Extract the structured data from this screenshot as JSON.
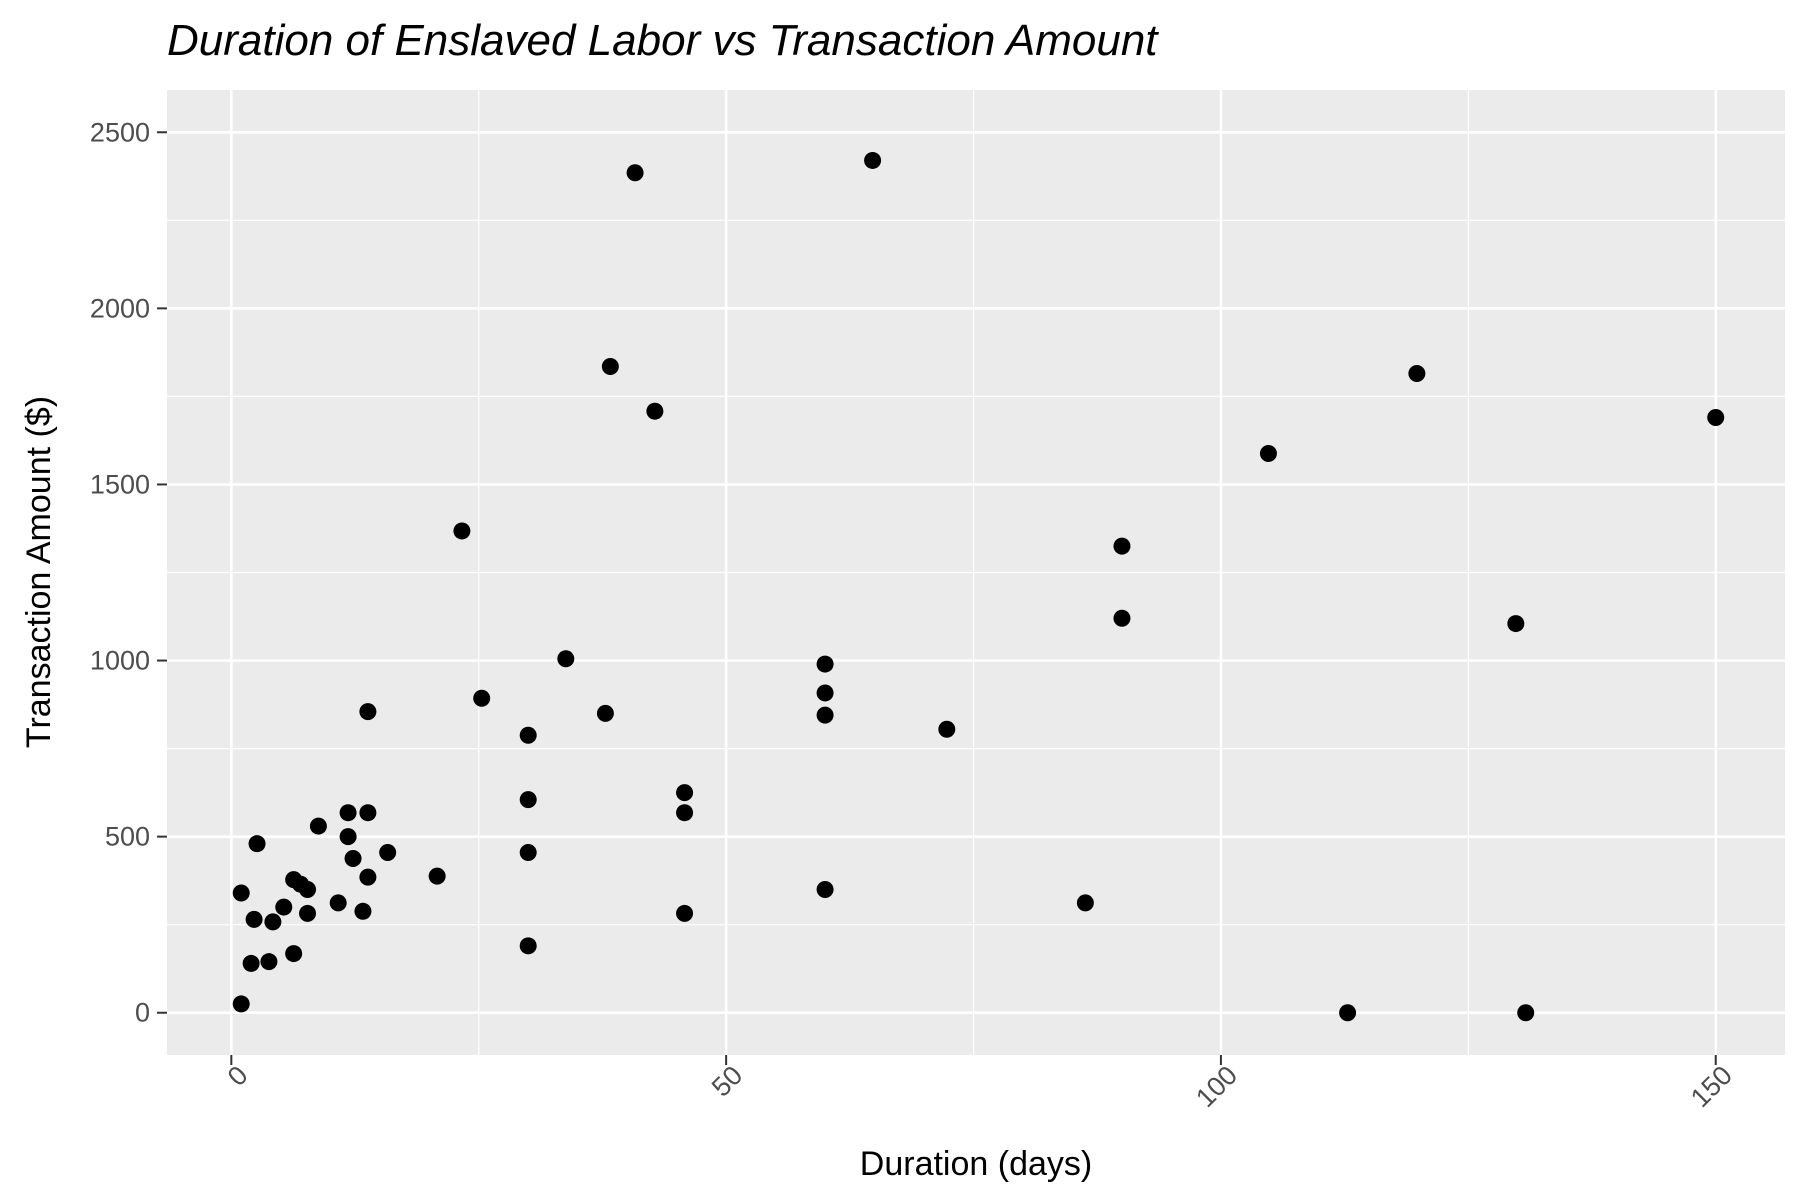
{
  "chart_data": {
    "type": "scatter",
    "title": "Duration of Enslaved Labor vs Transaction Amount",
    "xlabel": "Duration (days)",
    "ylabel": "Transaction Amount ($)",
    "xlim": [
      -6.5,
      157
    ],
    "ylim": [
      -120,
      2620
    ],
    "x_ticks": [
      0,
      50,
      100,
      150
    ],
    "x_tick_labels": [
      "0",
      "50",
      "100",
      "150"
    ],
    "y_ticks": [
      0,
      500,
      1000,
      1500,
      2000,
      2500
    ],
    "y_tick_labels": [
      "0",
      "500",
      "1000",
      "1500",
      "2000",
      "2500"
    ],
    "grid": true,
    "x_tick_label_rotation": "45 degrees",
    "colors": {
      "panel": "#ebebeb",
      "grid": "#ffffff",
      "point": "#000000",
      "tick": "#4d4d4d"
    },
    "points": [
      {
        "x": 1,
        "y": 25
      },
      {
        "x": 1,
        "y": 340
      },
      {
        "x": 2,
        "y": 140
      },
      {
        "x": 2.3,
        "y": 265
      },
      {
        "x": 2.6,
        "y": 480
      },
      {
        "x": 3.8,
        "y": 145
      },
      {
        "x": 4.2,
        "y": 258
      },
      {
        "x": 5.3,
        "y": 300
      },
      {
        "x": 6.3,
        "y": 168
      },
      {
        "x": 6.3,
        "y": 378
      },
      {
        "x": 7,
        "y": 365
      },
      {
        "x": 7.7,
        "y": 350
      },
      {
        "x": 7.7,
        "y": 282
      },
      {
        "x": 8.8,
        "y": 530
      },
      {
        "x": 10.8,
        "y": 312
      },
      {
        "x": 11.8,
        "y": 568
      },
      {
        "x": 11.8,
        "y": 500
      },
      {
        "x": 12.3,
        "y": 438
      },
      {
        "x": 13.3,
        "y": 288
      },
      {
        "x": 13.8,
        "y": 568
      },
      {
        "x": 13.8,
        "y": 385
      },
      {
        "x": 13.8,
        "y": 855
      },
      {
        "x": 15.8,
        "y": 455
      },
      {
        "x": 20.8,
        "y": 388
      },
      {
        "x": 23.3,
        "y": 1368
      },
      {
        "x": 25.3,
        "y": 893
      },
      {
        "x": 30,
        "y": 190
      },
      {
        "x": 30,
        "y": 455
      },
      {
        "x": 30,
        "y": 605
      },
      {
        "x": 30,
        "y": 788
      },
      {
        "x": 33.8,
        "y": 1005
      },
      {
        "x": 37.8,
        "y": 850
      },
      {
        "x": 38.3,
        "y": 1835
      },
      {
        "x": 40.8,
        "y": 2385
      },
      {
        "x": 42.8,
        "y": 1708
      },
      {
        "x": 45.8,
        "y": 282
      },
      {
        "x": 45.8,
        "y": 568
      },
      {
        "x": 45.8,
        "y": 625
      },
      {
        "x": 60,
        "y": 350
      },
      {
        "x": 60,
        "y": 845
      },
      {
        "x": 60,
        "y": 908
      },
      {
        "x": 60,
        "y": 990
      },
      {
        "x": 64.8,
        "y": 2420
      },
      {
        "x": 72.3,
        "y": 805
      },
      {
        "x": 86.3,
        "y": 312
      },
      {
        "x": 90,
        "y": 1120
      },
      {
        "x": 90,
        "y": 1325
      },
      {
        "x": 104.8,
        "y": 1588
      },
      {
        "x": 112.8,
        "y": 0
      },
      {
        "x": 119.8,
        "y": 1815
      },
      {
        "x": 129.8,
        "y": 1105
      },
      {
        "x": 130.8,
        "y": 0
      },
      {
        "x": 150,
        "y": 1690
      }
    ]
  }
}
